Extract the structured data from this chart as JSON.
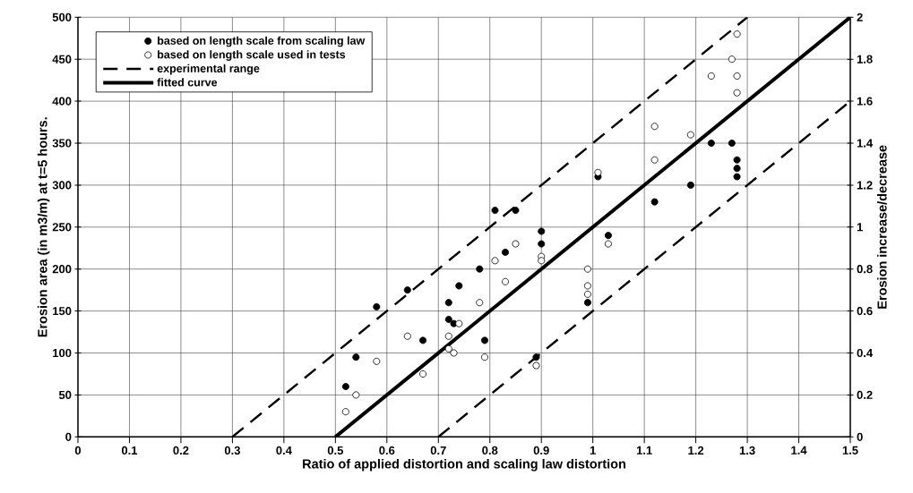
{
  "chart_data": {
    "type": "scatter",
    "xlabel": "Ratio of applied distortion and scaling law distortion",
    "ylabel": "Erosion area (in m3/m) at t=5 hours.",
    "y2label": "Erosion increase/decrease",
    "xlim": [
      0,
      1.5
    ],
    "xticks": [
      0,
      0.1,
      0.2,
      0.3,
      0.4,
      0.5,
      0.6,
      0.7,
      0.8,
      0.9,
      1,
      1.1,
      1.2,
      1.3,
      1.4,
      1.5
    ],
    "ylim": [
      0,
      500
    ],
    "yticks": [
      0,
      50,
      100,
      150,
      200,
      250,
      300,
      350,
      400,
      450,
      500
    ],
    "y2lim": [
      0,
      2
    ],
    "y2ticks": [
      0,
      0.2,
      0.4,
      0.6,
      0.8,
      1,
      1.2,
      1.4,
      1.6,
      1.8,
      2
    ],
    "grid": true,
    "legend": "top left",
    "marker": "circle",
    "series": [
      {
        "name": "based on length scale from scaling law",
        "color": "#000000",
        "x": [
          0.52,
          0.54,
          0.58,
          0.64,
          0.67,
          0.72,
          0.72,
          0.73,
          0.74,
          0.78,
          0.79,
          0.81,
          0.83,
          0.85,
          0.89,
          0.9,
          0.9,
          0.99,
          1.01,
          1.03,
          1.12,
          1.19,
          1.23,
          1.27,
          1.28,
          1.28,
          1.28
        ],
        "values": [
          60,
          95,
          155,
          175,
          115,
          160,
          140,
          135,
          180,
          200,
          115,
          270,
          220,
          270,
          95,
          245,
          230,
          160,
          310,
          240,
          280,
          300,
          350,
          350,
          330,
          320,
          310
        ]
      },
      {
        "name": "based on length scale used in tests",
        "color": "#ffffff",
        "x": [
          0.52,
          0.54,
          0.58,
          0.64,
          0.67,
          0.72,
          0.72,
          0.73,
          0.74,
          0.78,
          0.79,
          0.81,
          0.83,
          0.85,
          0.89,
          0.9,
          0.9,
          0.99,
          0.99,
          0.99,
          1.01,
          1.03,
          1.12,
          1.12,
          1.19,
          1.23,
          1.27,
          1.28,
          1.28,
          1.28
        ],
        "values": [
          30,
          50,
          90,
          120,
          75,
          120,
          105,
          100,
          135,
          160,
          95,
          210,
          185,
          230,
          85,
          215,
          210,
          200,
          180,
          170,
          315,
          230,
          370,
          330,
          360,
          430,
          450,
          480,
          430,
          410
        ]
      },
      {
        "name": "experimental range",
        "type": "line",
        "marker": "none",
        "line_style": "dashed",
        "color": "#000000",
        "x": [
          0.3,
          1.3
        ],
        "values": [
          0,
          500
        ]
      },
      {
        "name": "fitted curve",
        "type": "line",
        "marker": "none",
        "line_style": "solid",
        "color": "#000000",
        "x": [
          0.5,
          1.5
        ],
        "values": [
          0,
          500
        ]
      },
      {
        "type": "line",
        "marker": "none",
        "line_style": "dashed",
        "color": "#000000",
        "x": [
          0.7,
          1.5
        ],
        "values": [
          0,
          400
        ]
      }
    ]
  }
}
